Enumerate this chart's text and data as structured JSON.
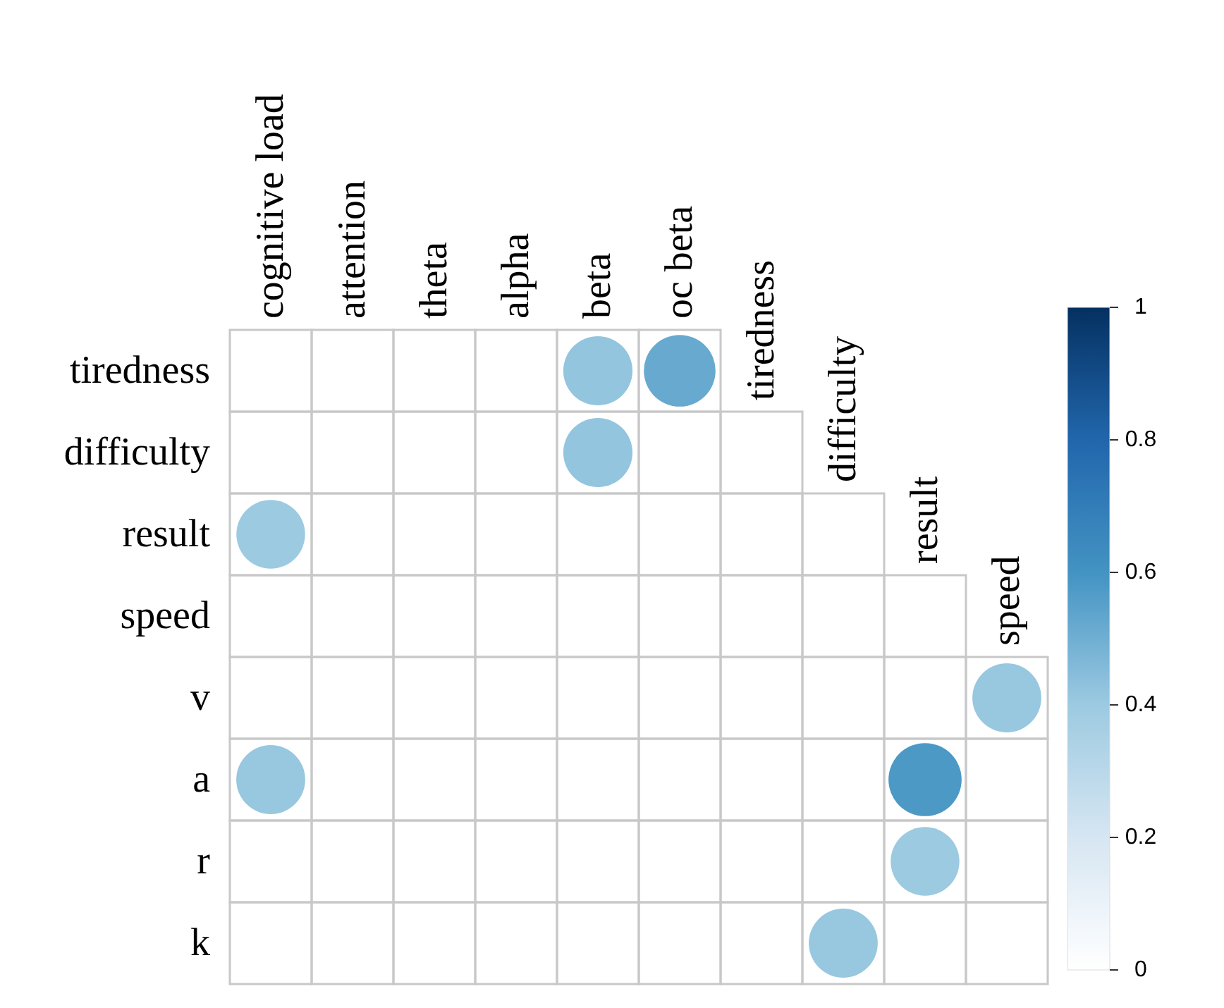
{
  "chart_data": {
    "type": "heatmap",
    "categories": [
      "cognitive load",
      "attention",
      "theta",
      "alpha",
      "beta",
      "oc beta",
      "tiredness",
      "difficulty",
      "result",
      "speed"
    ],
    "y_categories": [
      "tiredness",
      "difficulty",
      "result",
      "speed",
      "v",
      "a",
      "r",
      "k"
    ],
    "cells": [
      [
        null,
        null,
        null,
        null,
        0.42,
        0.52,
        null,
        null,
        null,
        null
      ],
      [
        null,
        null,
        null,
        null,
        0.42,
        null,
        null,
        null,
        null,
        null
      ],
      [
        0.4,
        null,
        null,
        null,
        null,
        null,
        null,
        null,
        null,
        null
      ],
      [
        null,
        null,
        null,
        null,
        null,
        null,
        null,
        null,
        null,
        null
      ],
      [
        null,
        null,
        null,
        null,
        null,
        null,
        null,
        null,
        null,
        0.41
      ],
      [
        0.41,
        null,
        null,
        null,
        null,
        null,
        null,
        null,
        0.58,
        null
      ],
      [
        null,
        null,
        null,
        null,
        null,
        null,
        null,
        null,
        0.4,
        null
      ],
      [
        null,
        null,
        null,
        null,
        null,
        null,
        null,
        0.41,
        null,
        null
      ]
    ],
    "clim": [
      0,
      1
    ],
    "cticks": [
      0,
      0.2,
      0.4,
      0.6,
      0.8,
      1
    ]
  }
}
